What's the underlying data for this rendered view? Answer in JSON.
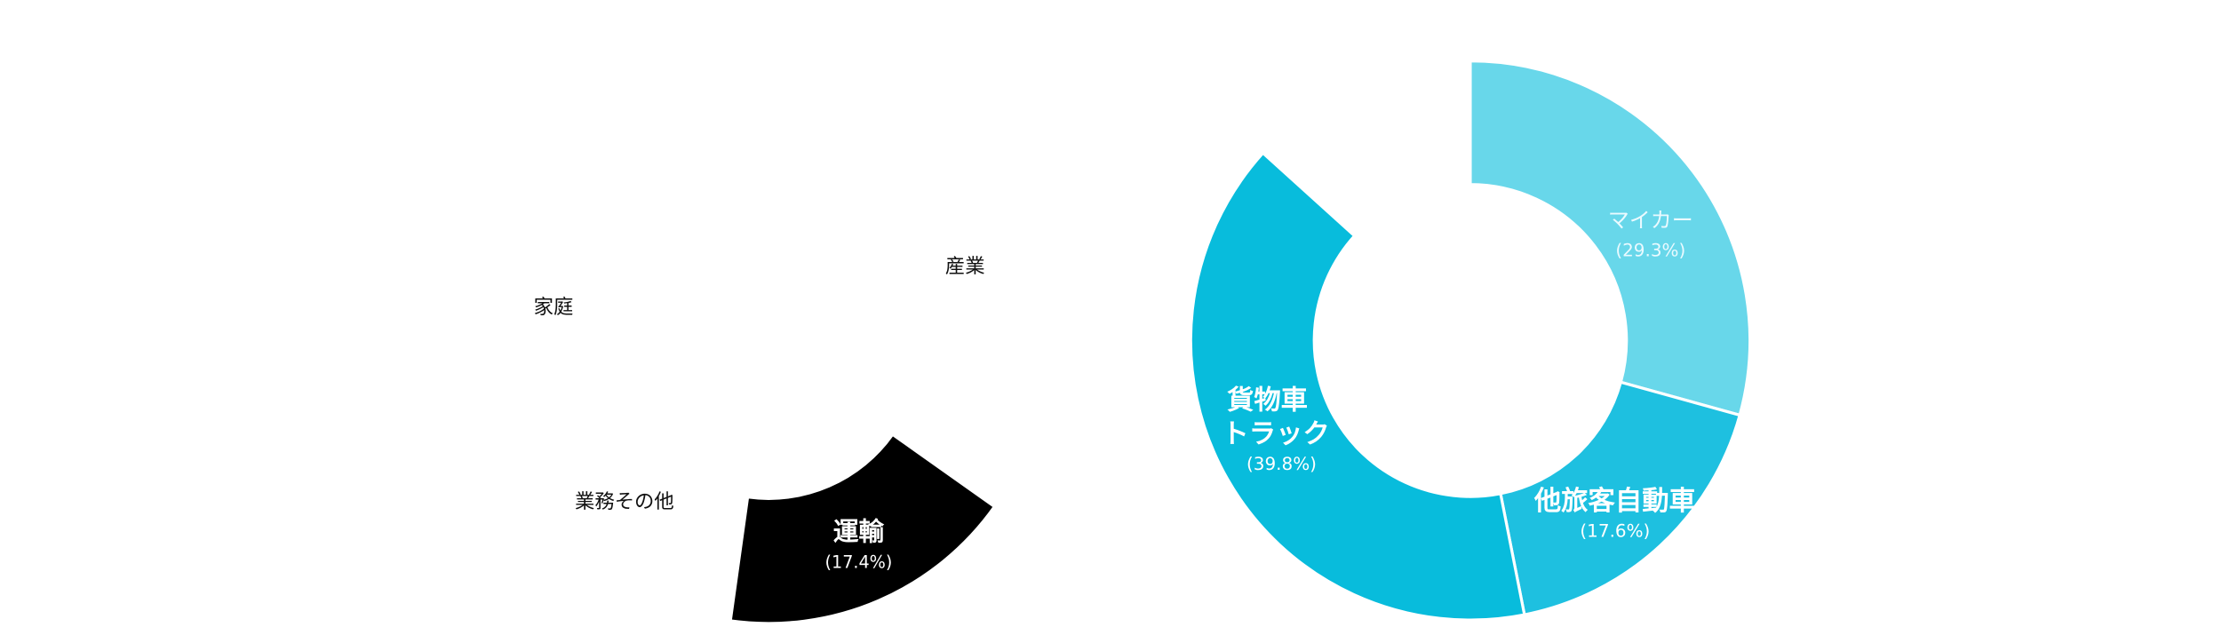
{
  "chart_data": [
    {
      "type": "donut",
      "categories": [
        [
          "産業"
        ],
        [
          "家庭"
        ],
        [
          "業務その他"
        ],
        [
          "運輸"
        ]
      ],
      "values": [
        null,
        null,
        null,
        17.4
      ],
      "value_labels": [
        null,
        null,
        null,
        "(17.4%)"
      ],
      "colors": [
        null,
        null,
        null,
        "#000000"
      ]
    },
    {
      "type": "donut",
      "categories": [
        [
          "マイカー"
        ],
        [
          "他旅客自動車"
        ],
        [
          "貨物車",
          "トラック"
        ]
      ],
      "values": [
        29.3,
        17.6,
        39.8
      ],
      "value_labels": [
        "(29.3%)",
        "(17.6%)",
        "(39.8%)"
      ],
      "colors": [
        "#68d7ea",
        "#1ec0e0",
        "#08bcdc"
      ]
    }
  ]
}
